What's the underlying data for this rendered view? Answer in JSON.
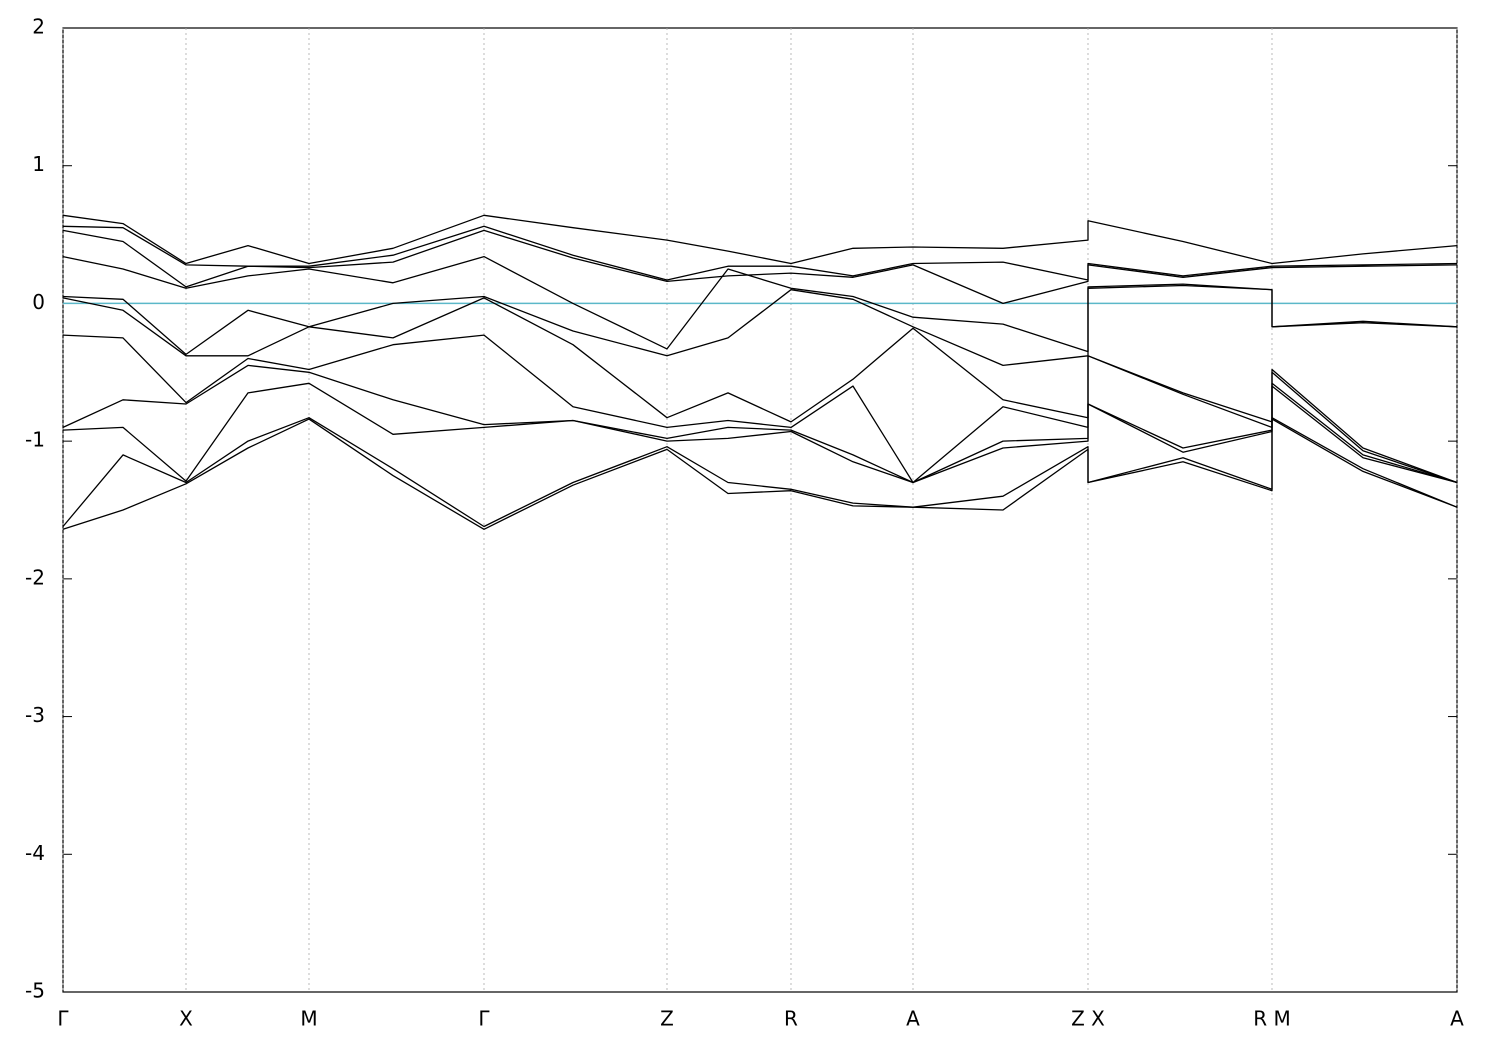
{
  "chart_data": {
    "type": "line",
    "x": [
      0,
      0.6,
      1.23,
      1.85,
      2.46,
      3.3,
      4.21,
      5.1,
      6.04,
      6.65,
      7.28,
      7.9,
      8.5,
      9.4,
      10.25,
      10.25,
      11.2,
      12.09,
      12.09,
      13.0,
      13.94
    ],
    "xlim": [
      0,
      13.94
    ],
    "xticks": [
      {
        "value": 0,
        "label": "Γ"
      },
      {
        "value": 1.23,
        "label": "X"
      },
      {
        "value": 2.46,
        "label": "M"
      },
      {
        "value": 4.21,
        "label": "Γ"
      },
      {
        "value": 6.04,
        "label": "Z"
      },
      {
        "value": 7.28,
        "label": "R"
      },
      {
        "value": 8.5,
        "label": "A"
      },
      {
        "value": 10.25,
        "label": "Z X"
      },
      {
        "value": 12.09,
        "label": "R M"
      },
      {
        "value": 13.94,
        "label": "A"
      }
    ],
    "ylim": [
      -5,
      2
    ],
    "yticks": [
      -5,
      -4,
      -3,
      -2,
      -1,
      0,
      1,
      2
    ],
    "grid": true,
    "hline": {
      "value": 0,
      "color": "#5bb8c9"
    },
    "series": [
      {
        "color": "#000000",
        "values": [
          0.64,
          0.58,
          0.29,
          0.42,
          0.29,
          0.4,
          0.64,
          0.55,
          0.46,
          0.38,
          0.29,
          0.4,
          0.41,
          0.4,
          0.46,
          0.6,
          0.45,
          0.29,
          0.29,
          0.36,
          0.42
        ]
      },
      {
        "color": "#000000",
        "values": [
          0.56,
          0.55,
          0.28,
          0.27,
          0.27,
          0.35,
          0.56,
          0.35,
          0.17,
          0.27,
          0.27,
          0.2,
          0.29,
          0.3,
          0.17,
          0.29,
          0.2,
          0.27,
          0.27,
          0.28,
          0.29
        ]
      },
      {
        "color": "#000000",
        "values": [
          0.53,
          0.45,
          0.12,
          0.27,
          0.26,
          0.3,
          0.53,
          0.33,
          0.16,
          0.2,
          0.22,
          0.19,
          0.28,
          0.0,
          0.16,
          0.28,
          0.19,
          0.26,
          0.26,
          0.27,
          0.28
        ]
      },
      {
        "color": "#000000",
        "values": [
          0.34,
          0.25,
          0.11,
          0.2,
          0.25,
          0.15,
          0.34,
          0.0,
          -0.33,
          0.25,
          0.11,
          0.05,
          -0.1,
          -0.15,
          -0.35,
          0.12,
          0.14,
          0.1,
          -0.17,
          -0.13,
          -0.17
        ]
      },
      {
        "color": "#000000",
        "values": [
          0.05,
          0.03,
          -0.37,
          -0.05,
          -0.17,
          0.0,
          0.05,
          -0.2,
          -0.38,
          -0.25,
          0.1,
          0.03,
          -0.17,
          -0.45,
          -0.38,
          0.11,
          0.13,
          0.1,
          -0.17,
          -0.14,
          -0.17
        ]
      },
      {
        "color": "#000000",
        "values": [
          0.04,
          -0.05,
          -0.38,
          -0.38,
          -0.17,
          -0.25,
          0.04,
          -0.3,
          -0.83,
          -0.65,
          -0.86,
          -0.55,
          -0.18,
          -0.7,
          -0.83,
          -0.38,
          -0.65,
          -0.86,
          -0.48,
          -1.05,
          -1.3
        ]
      },
      {
        "color": "#000000",
        "values": [
          -0.23,
          -0.25,
          -0.72,
          -0.4,
          -0.48,
          -0.3,
          -0.23,
          -0.75,
          -0.9,
          -0.85,
          -0.9,
          -0.6,
          -1.3,
          -0.75,
          -0.9,
          -0.38,
          -0.66,
          -0.9,
          -0.5,
          -1.07,
          -1.3
        ]
      },
      {
        "color": "#000000",
        "values": [
          -0.9,
          -0.7,
          -0.73,
          -0.45,
          -0.5,
          -0.7,
          -0.88,
          -0.85,
          -0.98,
          -0.9,
          -0.92,
          -1.1,
          -1.3,
          -1.0,
          -0.98,
          -0.73,
          -1.05,
          -0.92,
          -0.58,
          -1.1,
          -1.3
        ]
      },
      {
        "color": "#000000",
        "values": [
          -0.92,
          -0.9,
          -1.29,
          -0.65,
          -0.58,
          -0.95,
          -0.9,
          -0.85,
          -1.0,
          -0.98,
          -0.93,
          -1.15,
          -1.3,
          -1.05,
          -1.0,
          -0.73,
          -1.08,
          -0.93,
          -0.6,
          -1.12,
          -1.3
        ]
      },
      {
        "color": "#000000",
        "values": [
          -1.62,
          -1.1,
          -1.3,
          -1.0,
          -0.83,
          -1.2,
          -1.62,
          -1.3,
          -1.04,
          -1.3,
          -1.35,
          -1.45,
          -1.48,
          -1.4,
          -1.04,
          -1.3,
          -1.12,
          -1.35,
          -0.83,
          -1.2,
          -1.48
        ]
      },
      {
        "color": "#000000",
        "values": [
          -1.64,
          -1.5,
          -1.31,
          -1.05,
          -0.84,
          -1.25,
          -1.64,
          -1.32,
          -1.06,
          -1.38,
          -1.36,
          -1.47,
          -1.48,
          -1.5,
          -1.06,
          -1.3,
          -1.15,
          -1.36,
          -0.84,
          -1.22,
          -1.48
        ]
      }
    ]
  }
}
